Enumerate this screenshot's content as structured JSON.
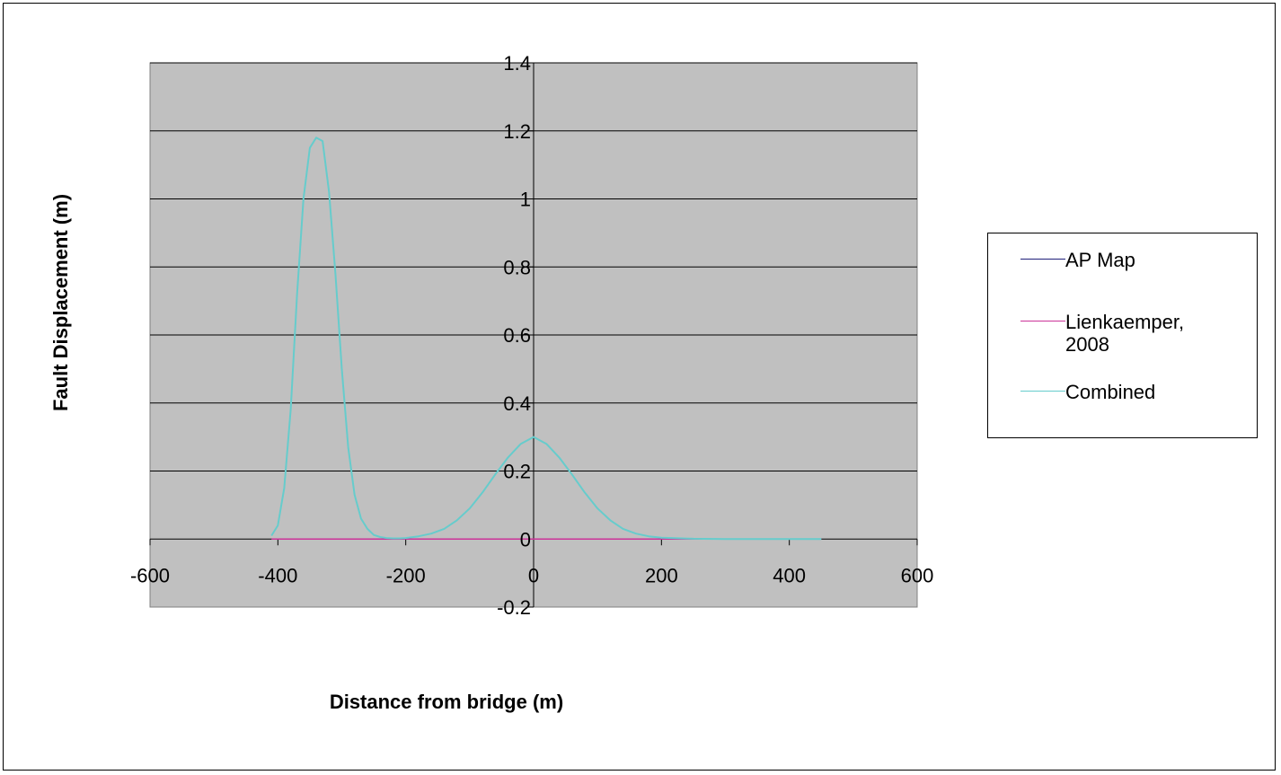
{
  "chart_data": {
    "type": "line",
    "title": "",
    "xlabel": "Distance from bridge (m)",
    "ylabel": "Fault Displacement (m)",
    "xlim": [
      -600,
      600
    ],
    "ylim": [
      -0.2,
      1.4
    ],
    "x_ticks": [
      "-600",
      "-400",
      "-200",
      "0",
      "200",
      "400",
      "600"
    ],
    "y_ticks": [
      "-0.2",
      "0",
      "0.2",
      "0.4",
      "0.6",
      "0.8",
      "1",
      "1.2",
      "1.4"
    ],
    "grid": "horizontal major gridlines",
    "plot_background": "#c0c0c0",
    "legend_position": "right",
    "series": [
      {
        "name": "AP Map",
        "color": "#1f1f7a",
        "x": [
          -410,
          -300,
          -200,
          -100,
          0,
          100,
          200,
          300,
          400,
          450
        ],
        "y": [
          0,
          0,
          0,
          0,
          0,
          0,
          0,
          0,
          0,
          0
        ]
      },
      {
        "name": "Lienkaemper,\n2008",
        "color": "#cc3399",
        "x": [
          -410,
          -300,
          -200,
          -100,
          0,
          100,
          200,
          300,
          400,
          450
        ],
        "y": [
          0,
          0,
          0,
          0,
          0,
          0,
          0,
          0,
          0,
          0
        ]
      },
      {
        "name": "Combined",
        "color": "#66cccc",
        "x": [
          -410,
          -400,
          -390,
          -380,
          -370,
          -360,
          -350,
          -340,
          -330,
          -320,
          -310,
          -300,
          -290,
          -280,
          -270,
          -260,
          -250,
          -240,
          -230,
          -220,
          -210,
          -200,
          -180,
          -160,
          -140,
          -120,
          -100,
          -80,
          -60,
          -40,
          -20,
          0,
          20,
          40,
          60,
          80,
          100,
          120,
          140,
          160,
          180,
          200,
          250,
          300,
          350,
          400,
          450
        ],
        "y": [
          0.01,
          0.04,
          0.15,
          0.38,
          0.72,
          1.0,
          1.15,
          1.18,
          1.17,
          1.02,
          0.78,
          0.5,
          0.27,
          0.13,
          0.06,
          0.03,
          0.012,
          0.006,
          0.003,
          0.002,
          0.002,
          0.003,
          0.008,
          0.016,
          0.03,
          0.055,
          0.09,
          0.137,
          0.19,
          0.24,
          0.28,
          0.3,
          0.28,
          0.24,
          0.19,
          0.137,
          0.09,
          0.055,
          0.03,
          0.016,
          0.008,
          0.004,
          0.001,
          0.0,
          0.0,
          0.0,
          0.0
        ]
      }
    ]
  }
}
